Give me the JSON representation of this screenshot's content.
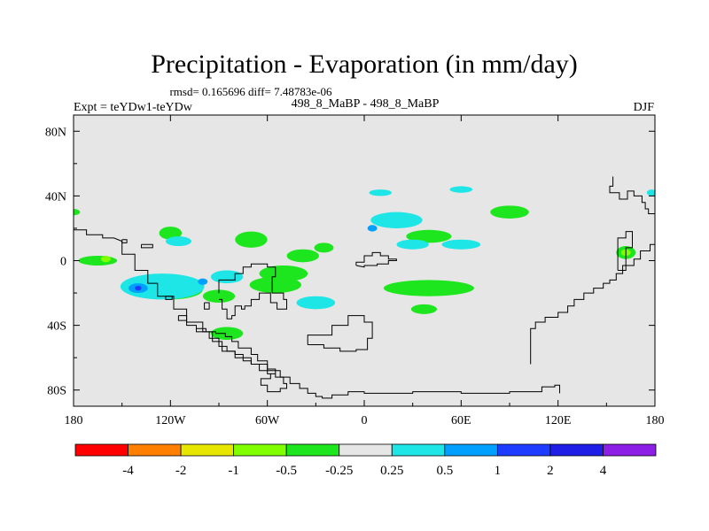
{
  "chart_data": {
    "type": "filled-contour-map",
    "title": "Precipitation - Evaporation (in mm/day)",
    "stats": "rmsd= 0.165696 diff= 7.48783e-06",
    "experiment": "Expt = teYDw1-teYDw",
    "subtitle": "498_8_MaBP - 498_8_MaBP",
    "season": "DJF",
    "x_tick_labels": [
      "180",
      "120W",
      "60W",
      "0",
      "60E",
      "120E",
      "180"
    ],
    "x_tick_values": [
      -180,
      -120,
      -60,
      0,
      60,
      120,
      180
    ],
    "y_tick_labels": [
      "80N",
      "40N",
      "0",
      "40S",
      "80S"
    ],
    "y_tick_values": [
      80,
      40,
      0,
      -40,
      -80
    ],
    "xlim": [
      -180,
      180
    ],
    "ylim": [
      -90,
      90
    ],
    "colorbar": {
      "labels": [
        "-4",
        "-2",
        "-1",
        "-0.5",
        "-0.25",
        "0.25",
        "0.5",
        "1",
        "2",
        "4"
      ],
      "colors": [
        "#ff0000",
        "#ff8000",
        "#e6e600",
        "#80ff00",
        "#1ee61e",
        "#e6e6e6",
        "#1ee6e6",
        "#00a0ff",
        "#1e3cff",
        "#1e1ee6",
        "#8c1ee6"
      ]
    },
    "ocean_color": "#e6e6e6",
    "regions": [
      {
        "level": "-0.25",
        "color": "#1ee61e",
        "lon": -165,
        "lat": 0,
        "dlon": 12,
        "dlat": 3
      },
      {
        "level": "-0.25",
        "color": "#1ee61e",
        "lon": -120,
        "lat": -18,
        "dlon": 20,
        "dlat": 6
      },
      {
        "level": "-0.25",
        "color": "#1ee61e",
        "lon": -90,
        "lat": -22,
        "dlon": 10,
        "dlat": 4
      },
      {
        "level": "-0.25",
        "color": "#1ee61e",
        "lon": -55,
        "lat": -15,
        "dlon": 16,
        "dlat": 5
      },
      {
        "level": "-0.25",
        "color": "#1ee61e",
        "lon": -50,
        "lat": -8,
        "dlon": 15,
        "dlat": 5
      },
      {
        "level": "-0.25",
        "color": "#1ee61e",
        "lon": -38,
        "lat": 3,
        "dlon": 10,
        "dlat": 4
      },
      {
        "level": "-0.25",
        "color": "#1ee61e",
        "lon": -25,
        "lat": 8,
        "dlon": 6,
        "dlat": 3
      },
      {
        "level": "-0.25",
        "color": "#1ee61e",
        "lon": -85,
        "lat": -45,
        "dlon": 10,
        "dlat": 4
      },
      {
        "level": "-0.25",
        "color": "#1ee61e",
        "lon": -120,
        "lat": 17,
        "dlon": 7,
        "dlat": 4
      },
      {
        "level": "-0.25",
        "color": "#1ee61e",
        "lon": -70,
        "lat": 13,
        "dlon": 10,
        "dlat": 5
      },
      {
        "level": "-0.25",
        "color": "#1ee61e",
        "lon": 40,
        "lat": 15,
        "dlon": 14,
        "dlat": 4
      },
      {
        "level": "-0.25",
        "color": "#1ee61e",
        "lon": 40,
        "lat": -17,
        "dlon": 28,
        "dlat": 5
      },
      {
        "level": "-0.25",
        "color": "#1ee61e",
        "lon": 90,
        "lat": 30,
        "dlon": 12,
        "dlat": 4
      },
      {
        "level": "-0.25",
        "color": "#1ee61e",
        "lon": 162,
        "lat": 5,
        "dlon": 6,
        "dlat": 4
      },
      {
        "level": "-0.25",
        "color": "#1ee61e",
        "lon": 37,
        "lat": -30,
        "dlon": 8,
        "dlat": 3
      },
      {
        "level": "-0.25",
        "color": "#1ee61e",
        "lon": -180,
        "lat": 30,
        "dlon": 4,
        "dlat": 2
      },
      {
        "level": "-0.5",
        "color": "#80ff00",
        "lon": -160,
        "lat": 1,
        "dlon": 3,
        "dlat": 2
      },
      {
        "level": "-0.5",
        "color": "#80ff00",
        "lon": 162,
        "lat": 5,
        "dlon": 3,
        "dlat": 2
      },
      {
        "level": "0.25",
        "color": "#1ee6e6",
        "lon": -125,
        "lat": -16,
        "dlon": 26,
        "dlat": 8
      },
      {
        "level": "0.25",
        "color": "#1ee6e6",
        "lon": -85,
        "lat": -10,
        "dlon": 10,
        "dlat": 4
      },
      {
        "level": "0.25",
        "color": "#1ee6e6",
        "lon": -30,
        "lat": -26,
        "dlon": 12,
        "dlat": 4
      },
      {
        "level": "0.25",
        "color": "#1ee6e6",
        "lon": -115,
        "lat": 12,
        "dlon": 8,
        "dlat": 3
      },
      {
        "level": "0.25",
        "color": "#1ee6e6",
        "lon": 20,
        "lat": 25,
        "dlon": 16,
        "dlat": 5
      },
      {
        "level": "0.25",
        "color": "#1ee6e6",
        "lon": 60,
        "lat": 10,
        "dlon": 12,
        "dlat": 3
      },
      {
        "level": "0.25",
        "color": "#1ee6e6",
        "lon": 60,
        "lat": 44,
        "dlon": 7,
        "dlat": 2
      },
      {
        "level": "0.25",
        "color": "#1ee6e6",
        "lon": 10,
        "lat": 42,
        "dlon": 7,
        "dlat": 2
      },
      {
        "level": "0.25",
        "color": "#1ee6e6",
        "lon": 30,
        "lat": 10,
        "dlon": 10,
        "dlat": 3
      },
      {
        "level": "0.25",
        "color": "#1ee6e6",
        "lon": 178,
        "lat": 42,
        "dlon": 3,
        "dlat": 2
      },
      {
        "level": "0.5",
        "color": "#00a0ff",
        "lon": -140,
        "lat": -17,
        "dlon": 6,
        "dlat": 3
      },
      {
        "level": "0.5",
        "color": "#00a0ff",
        "lon": -100,
        "lat": -13,
        "dlon": 3,
        "dlat": 2
      },
      {
        "level": "0.5",
        "color": "#00a0ff",
        "lon": 5,
        "lat": 20,
        "dlon": 3,
        "dlat": 2
      },
      {
        "level": "1",
        "color": "#1e3cff",
        "lon": -140,
        "lat": -17,
        "dlon": 2,
        "dlat": 1.5
      }
    ],
    "continent_outlines": [
      {
        "name": "pangaea-west-margin",
        "lon": [
          -180,
          -172,
          -172,
          -162,
          -162,
          -155,
          -150,
          -150,
          -142,
          -142,
          -134,
          -134,
          -128,
          -128,
          -118,
          -118,
          -110,
          -110,
          -100,
          -100,
          -94,
          -94,
          -88,
          -88,
          -80,
          -80,
          -70,
          -70,
          -60,
          -60,
          -52,
          -52,
          -46,
          -46,
          -40,
          -40,
          -35,
          -35,
          -30,
          -30,
          -26,
          -26,
          -20,
          -20,
          -10,
          -10,
          0,
          0,
          30,
          30,
          60,
          60,
          90,
          90,
          110,
          110,
          118,
          118,
          121,
          121
        ],
        "lat": [
          19,
          19,
          16,
          16,
          14,
          14,
          12,
          4,
          4,
          -6,
          -6,
          -14,
          -14,
          -22,
          -22,
          -30,
          -30,
          -38,
          -38,
          -44,
          -44,
          -50,
          -50,
          -56,
          -56,
          -60,
          -60,
          -64,
          -64,
          -68,
          -68,
          -72,
          -72,
          -76,
          -76,
          -79,
          -79,
          -82,
          -82,
          -84,
          -84,
          -85,
          -85,
          -83,
          -83,
          -81,
          -81,
          -82,
          -82,
          -81,
          -81,
          -82,
          -82,
          -81,
          -81,
          -78,
          -78,
          -77,
          -77,
          -82
        ]
      },
      {
        "name": "pangaea-east-margin",
        "lon": [
          103,
          103,
          106,
          106,
          112,
          112,
          120,
          120,
          126,
          126,
          130,
          130,
          136,
          136,
          142,
          142,
          148,
          148,
          152,
          152,
          156,
          156,
          160,
          160,
          167,
          167,
          171,
          171,
          177,
          177,
          180
        ],
        "lat": [
          -64,
          -42,
          -42,
          -38,
          -38,
          -35,
          -35,
          -32,
          -32,
          -28,
          -28,
          -24,
          -24,
          -20,
          -20,
          -17,
          -17,
          -14,
          -14,
          -12,
          -12,
          -8,
          -8,
          -3,
          -3,
          1,
          1,
          6,
          6,
          10,
          10
        ]
      },
      {
        "name": "eastern-tethys-island",
        "lon": [
          157,
          157,
          162,
          162,
          166,
          166,
          162,
          162,
          157
        ],
        "lat": [
          -6,
          14,
          14,
          18,
          18,
          8,
          8,
          -6,
          -6
        ]
      },
      {
        "name": "eurasia-east-coast",
        "lon": [
          180,
          176,
          176,
          174,
          174,
          172,
          172,
          167,
          167,
          163,
          163,
          158,
          158,
          152,
          152,
          154,
          154
        ],
        "lat": [
          29,
          29,
          32,
          32,
          36,
          36,
          40,
          40,
          43,
          43,
          38,
          38,
          42,
          42,
          46,
          46,
          52
        ]
      },
      {
        "name": "tethys-land",
        "lon": [
          -5,
          -5,
          0,
          0,
          5,
          5,
          10,
          10,
          15,
          15,
          20,
          20,
          15,
          15,
          8,
          8,
          0,
          0,
          -5
        ],
        "lat": [
          -3,
          -1,
          -1,
          3,
          3,
          5,
          5,
          3,
          3,
          1,
          1,
          0,
          0,
          -2,
          -2,
          -3,
          -3,
          -4,
          -3
        ]
      },
      {
        "name": "southern-land-block",
        "lon": [
          -35,
          -35,
          -20,
          -20,
          -10,
          -10,
          0,
          0,
          5,
          5,
          2,
          2,
          -5,
          -5,
          -15,
          -15,
          -25,
          -25,
          -35
        ],
        "lat": [
          -52,
          -46,
          -46,
          -40,
          -40,
          -34,
          -34,
          -38,
          -38,
          -48,
          -48,
          -55,
          -55,
          -56,
          -56,
          -54,
          -54,
          -52,
          -52
        ]
      },
      {
        "name": "peninsula-south",
        "lon": [
          -115,
          -110,
          -110,
          -104,
          -104,
          -96,
          -96,
          -90,
          -90,
          -85,
          -85,
          -80,
          -80,
          -75,
          -75,
          -70,
          -70,
          -65,
          -65,
          -60,
          -60,
          -55,
          -55,
          -50,
          -50,
          -48,
          -48,
          -52,
          -52,
          -60,
          -60,
          -64,
          -64,
          -58,
          -58,
          -55,
          -55,
          -60,
          -60,
          -66,
          -66,
          -70,
          -70,
          -78,
          -78,
          -82,
          -82,
          -86,
          -86,
          -92,
          -92,
          -98,
          -98,
          -104,
          -104,
          -110,
          -110,
          -115,
          -115
        ],
        "lat": [
          -34,
          -34,
          -40,
          -40,
          -44,
          -44,
          -48,
          -48,
          -53,
          -53,
          -56,
          -56,
          -58,
          -58,
          -62,
          -62,
          -64,
          -64,
          -68,
          -68,
          -70,
          -70,
          -72,
          -72,
          -76,
          -76,
          -79,
          -79,
          -81,
          -81,
          -77,
          -77,
          -73,
          -73,
          -70,
          -70,
          -67,
          -67,
          -62,
          -62,
          -58,
          -58,
          -54,
          -54,
          -50,
          -50,
          -47,
          -47,
          -45,
          -45,
          -44,
          -44,
          -42,
          -42,
          -40,
          -40,
          -37,
          -37,
          -34
        ]
      },
      {
        "name": "central-highland",
        "lon": [
          -90,
          -90,
          -80,
          -80,
          -75,
          -75,
          -70,
          -70,
          -60,
          -60,
          -55,
          -55,
          -57,
          -57,
          -50,
          -50,
          -48,
          -48,
          -54,
          -54,
          -58,
          -58,
          -65,
          -65,
          -70,
          -70,
          -74,
          -74,
          -76,
          -76,
          -80,
          -80,
          -82,
          -82,
          -85,
          -85,
          -88,
          -88,
          -90
        ],
        "lat": [
          -20,
          -12,
          -12,
          -8,
          -8,
          -4,
          -4,
          -2,
          -2,
          -4,
          -4,
          -10,
          -10,
          -20,
          -20,
          -24,
          -24,
          -30,
          -30,
          -26,
          -26,
          -20,
          -20,
          -24,
          -24,
          -28,
          -28,
          -30,
          -30,
          -28,
          -28,
          -34,
          -34,
          -36,
          -36,
          -30,
          -30,
          -24,
          -24
        ]
      },
      {
        "name": "small-island-1",
        "lon": [
          -150,
          -147,
          -147,
          -150,
          -150
        ],
        "lat": [
          13,
          13,
          11,
          11,
          13
        ]
      },
      {
        "name": "small-island-2",
        "lon": [
          -138,
          -131,
          -131,
          -138,
          -138
        ],
        "lat": [
          10,
          10,
          8,
          8,
          10
        ]
      },
      {
        "name": "small-island-3",
        "lon": [
          -123,
          -119,
          -119,
          -123,
          -123
        ],
        "lat": [
          -22,
          -22,
          -24,
          -24,
          -22
        ]
      },
      {
        "name": "small-island-4",
        "lon": [
          -99,
          -96,
          -96,
          -99,
          -99
        ],
        "lat": [
          -26,
          -26,
          -30,
          -30,
          -26
        ]
      }
    ]
  }
}
